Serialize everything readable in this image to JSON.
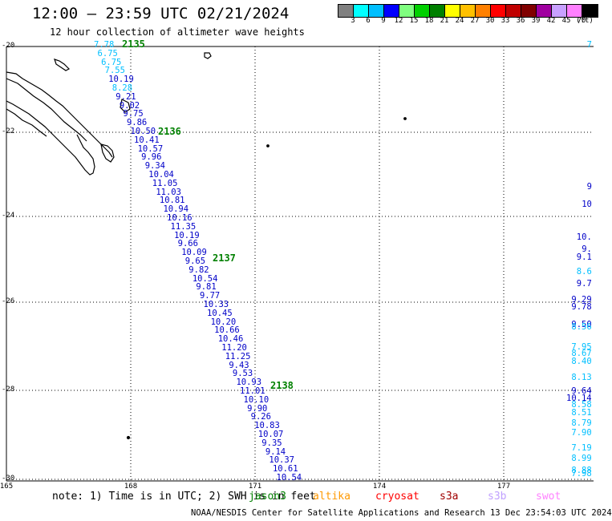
{
  "header": {
    "title": "12:00 – 23:59 UTC 02/21/2024",
    "subtitle": "12 hour collection of altimeter wave heights"
  },
  "colorbar": {
    "colors": [
      "#808080",
      "#00ffff",
      "#00bfff",
      "#0000ff",
      "#80ff80",
      "#00d000",
      "#008000",
      "#ffff00",
      "#ffc000",
      "#ff8000",
      "#ff0000",
      "#c00000",
      "#800000",
      "#a000a0",
      "#c8a0ff",
      "#ff80ff",
      "#000000"
    ],
    "labels": [
      "3",
      "6",
      "9",
      "12",
      "15",
      "18",
      "21",
      "24",
      "27",
      "30",
      "33",
      "36",
      "39",
      "42",
      "45",
      "70"
    ],
    "unit": "(ft)"
  },
  "axes": {
    "lat_labels": [
      "-20",
      "-22",
      "-24",
      "-26",
      "-28",
      "-30"
    ],
    "lon_labels": [
      "165",
      "168",
      "171",
      "174",
      "177"
    ]
  },
  "passes": [
    "2135",
    "2136",
    "2137",
    "2138"
  ],
  "track_values": [
    {
      "t": "7.78",
      "c": "#00bfff"
    },
    {
      "t": "6.75",
      "c": "#00bfff"
    },
    {
      "t": "6.75",
      "c": "#00bfff"
    },
    {
      "t": "7.55",
      "c": "#00bfff"
    },
    {
      "t": "10.19",
      "c": "#0000c8"
    },
    {
      "t": "8.28",
      "c": "#00bfff"
    },
    {
      "t": "9.21",
      "c": "#0000c8"
    },
    {
      "t": "9.02",
      "c": "#0000c8"
    },
    {
      "t": "9.75",
      "c": "#0000c8"
    },
    {
      "t": "9.86",
      "c": "#0000c8"
    },
    {
      "t": "10.50",
      "c": "#0000c8"
    },
    {
      "t": "10.41",
      "c": "#0000c8"
    },
    {
      "t": "10.57",
      "c": "#0000c8"
    },
    {
      "t": "9.96",
      "c": "#0000c8"
    },
    {
      "t": "9.34",
      "c": "#0000c8"
    },
    {
      "t": "10.04",
      "c": "#0000c8"
    },
    {
      "t": "11.05",
      "c": "#0000c8"
    },
    {
      "t": "11.03",
      "c": "#0000c8"
    },
    {
      "t": "10.81",
      "c": "#0000c8"
    },
    {
      "t": "10.94",
      "c": "#0000c8"
    },
    {
      "t": "10.16",
      "c": "#0000c8"
    },
    {
      "t": "11.35",
      "c": "#0000c8"
    },
    {
      "t": "10.19",
      "c": "#0000c8"
    },
    {
      "t": "9.66",
      "c": "#0000c8"
    },
    {
      "t": "10.09",
      "c": "#0000c8"
    },
    {
      "t": "9.65",
      "c": "#0000c8"
    },
    {
      "t": "9.82",
      "c": "#0000c8"
    },
    {
      "t": "10.54",
      "c": "#0000c8"
    },
    {
      "t": "9.81",
      "c": "#0000c8"
    },
    {
      "t": "9.77",
      "c": "#0000c8"
    },
    {
      "t": "10.33",
      "c": "#0000c8"
    },
    {
      "t": "10.45",
      "c": "#0000c8"
    },
    {
      "t": "10.20",
      "c": "#0000c8"
    },
    {
      "t": "10.66",
      "c": "#0000c8"
    },
    {
      "t": "10.46",
      "c": "#0000c8"
    },
    {
      "t": "11.20",
      "c": "#0000c8"
    },
    {
      "t": "11.25",
      "c": "#0000c8"
    },
    {
      "t": "9.43",
      "c": "#0000c8"
    },
    {
      "t": "9.53",
      "c": "#0000c8"
    },
    {
      "t": "10.93",
      "c": "#0000c8"
    },
    {
      "t": "11.01",
      "c": "#0000c8"
    },
    {
      "t": "10.10",
      "c": "#0000c8"
    },
    {
      "t": "9.90",
      "c": "#0000c8"
    },
    {
      "t": "9.26",
      "c": "#0000c8"
    },
    {
      "t": "10.83",
      "c": "#0000c8"
    },
    {
      "t": "10.07",
      "c": "#0000c8"
    },
    {
      "t": "9.35",
      "c": "#0000c8"
    },
    {
      "t": "9.14",
      "c": "#0000c8"
    },
    {
      "t": "10.37",
      "c": "#0000c8"
    },
    {
      "t": "10.61",
      "c": "#0000c8"
    },
    {
      "t": "10.54",
      "c": "#0000c8"
    }
  ],
  "edge_values": [
    {
      "t": "7",
      "c": "#00bfff"
    },
    {
      "t": "9",
      "c": "#0000c8"
    },
    {
      "t": "10",
      "c": "#0000c8"
    },
    {
      "t": "10.",
      "c": "#0000c8"
    },
    {
      "t": "9.",
      "c": "#0000c8"
    },
    {
      "t": "9.1",
      "c": "#0000c8"
    },
    {
      "t": "8.6",
      "c": "#00bfff"
    },
    {
      "t": "9.7",
      "c": "#0000c8"
    },
    {
      "t": "9.29",
      "c": "#0000c8"
    },
    {
      "t": "9.78",
      "c": "#0000c8"
    },
    {
      "t": "9.50",
      "c": "#0000c8"
    },
    {
      "t": "8.56",
      "c": "#00bfff"
    },
    {
      "t": "7.95",
      "c": "#00bfff"
    },
    {
      "t": "8.67",
      "c": "#00bfff"
    },
    {
      "t": "8.40",
      "c": "#00bfff"
    },
    {
      "t": "8.13",
      "c": "#00bfff"
    },
    {
      "t": "9.64",
      "c": "#0000c8"
    },
    {
      "t": "10.14",
      "c": "#0000c8"
    },
    {
      "t": "8.58",
      "c": "#00bfff"
    },
    {
      "t": "8.51",
      "c": "#00bfff"
    },
    {
      "t": "8.79",
      "c": "#00bfff"
    },
    {
      "t": "7.90",
      "c": "#00bfff"
    },
    {
      "t": "7.19",
      "c": "#00bfff"
    },
    {
      "t": "8.99",
      "c": "#00bfff"
    },
    {
      "t": "8.88",
      "c": "#00bfff"
    },
    {
      "t": "7.98",
      "c": "#00bfff"
    }
  ],
  "footer": {
    "note": "note: 1) Time is in UTC; 2) SWH is in feet",
    "legend": [
      {
        "label": "jason3",
        "color": "#008000"
      },
      {
        "label": "altika",
        "color": "#ff9900"
      },
      {
        "label": "cryosat",
        "color": "#ff0000"
      },
      {
        "label": "s3a",
        "color": "#a00000"
      },
      {
        "label": "s3b",
        "color": "#c0a0ff"
      },
      {
        "label": "swot",
        "color": "#ff80ff"
      }
    ],
    "credit": "NOAA/NESDIS Center for Satellite Applications and Research    13 Dec 23:54:03 UTC 2024"
  }
}
